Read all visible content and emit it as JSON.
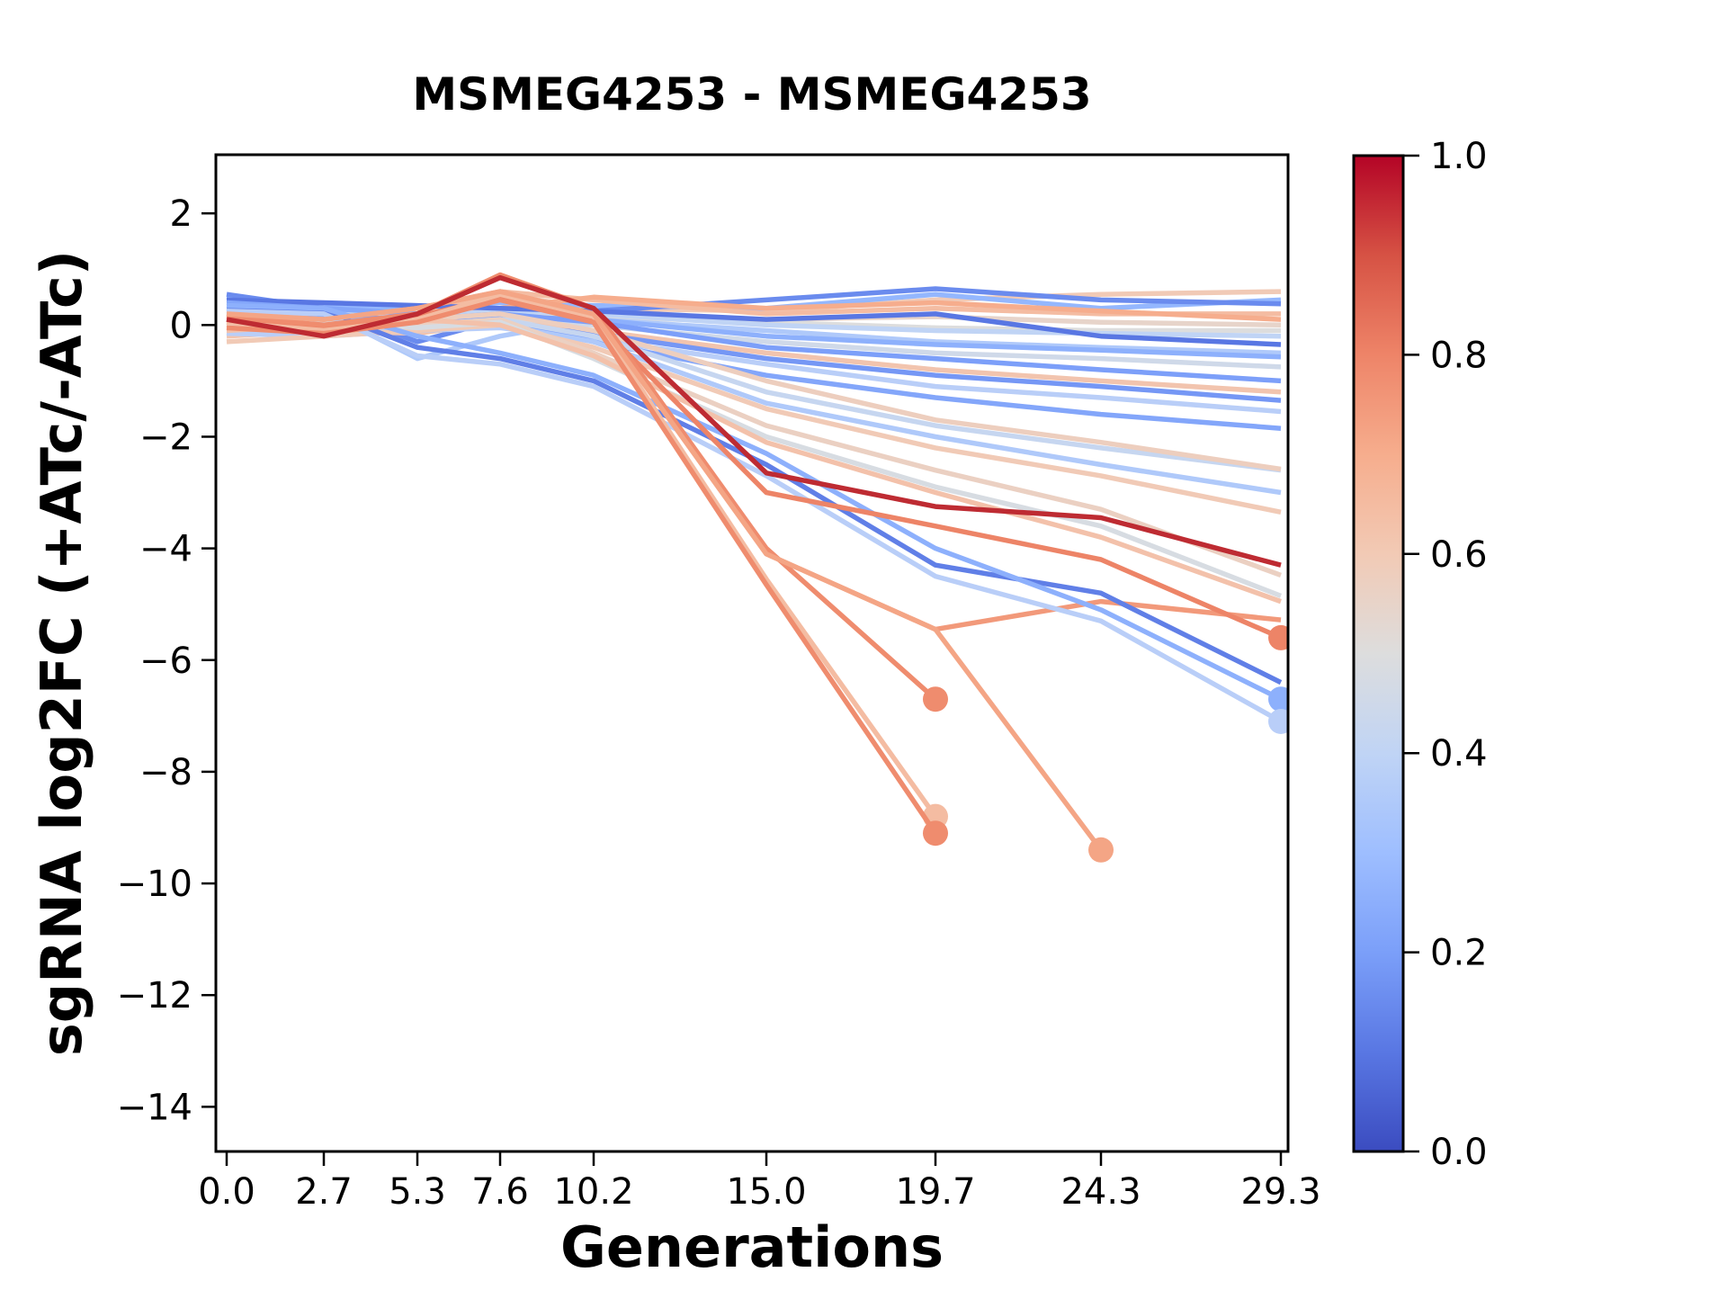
{
  "chart_data": {
    "type": "line",
    "title": "MSMEG4253 - MSMEG4253",
    "xlabel": "Generations",
    "ylabel": "sgRNA log2FC (+ATc/-ATc)",
    "x": [
      0.0,
      2.7,
      5.3,
      7.6,
      10.2,
      15.0,
      19.7,
      24.3,
      29.3
    ],
    "xtick_labels": [
      "0.0",
      "2.7",
      "5.3",
      "7.6",
      "10.2",
      "15.0",
      "19.7",
      "24.3",
      "29.3"
    ],
    "ytick_values": [
      2,
      0,
      -2,
      -4,
      -6,
      -8,
      -10,
      -12,
      -14
    ],
    "ytick_labels": [
      "2",
      "0",
      "−2",
      "−4",
      "−6",
      "−8",
      "−10",
      "−12",
      "−14"
    ],
    "xlim": [
      -0.3,
      29.5
    ],
    "ylim": [
      -14.8,
      3.05
    ],
    "grid": false,
    "legend_position": "none",
    "colorbar": {
      "colormap": "coolwarm",
      "vmin": 0.0,
      "vmax": 1.0,
      "tick_values": [
        1.0,
        0.8,
        0.6,
        0.4,
        0.2,
        0.0
      ],
      "tick_labels": [
        "1.0",
        "0.8",
        "0.6",
        "0.4",
        "0.2",
        "0.0"
      ]
    },
    "series": [
      {
        "color": "#F1CAB6",
        "marker_end": false,
        "values": [
          0.1,
          0.15,
          0.2,
          0.55,
          0.3,
          0.25,
          0.45,
          0.55,
          0.6
        ]
      },
      {
        "color": "#94B7FE",
        "marker_end": false,
        "values": [
          0.5,
          0.35,
          0.3,
          0.4,
          0.35,
          0.3,
          0.55,
          0.3,
          0.45
        ]
      },
      {
        "color": "#6A8BEE",
        "marker_end": false,
        "values": [
          0.55,
          0.3,
          -0.3,
          0.1,
          0.25,
          0.45,
          0.65,
          0.45,
          0.38
        ]
      },
      {
        "color": "#F4BCA2",
        "marker_end": false,
        "values": [
          0.2,
          0.1,
          0.15,
          0.6,
          0.45,
          0.2,
          0.3,
          0.2,
          0.2
        ]
      },
      {
        "color": "#F6AD8D",
        "marker_end": false,
        "values": [
          -0.1,
          -0.15,
          0.1,
          0.3,
          0.5,
          0.3,
          0.4,
          0.25,
          0.1
        ]
      },
      {
        "color": "#E7D4CA",
        "marker_end": false,
        "values": [
          0.0,
          0.05,
          -0.05,
          0.1,
          0.2,
          0.1,
          0.15,
          0.05,
          0.0
        ]
      },
      {
        "color": "#DDDDDD",
        "marker_end": false,
        "values": [
          -0.05,
          0.0,
          0.1,
          0.2,
          0.15,
          0.05,
          -0.05,
          -0.1,
          -0.1
        ]
      },
      {
        "color": "#C0D4F5",
        "marker_end": false,
        "values": [
          0.3,
          0.2,
          0.15,
          0.25,
          0.2,
          0.0,
          -0.1,
          -0.15,
          -0.2
        ]
      },
      {
        "color": "#5977E3",
        "marker_end": false,
        "values": [
          0.45,
          0.4,
          0.35,
          0.3,
          0.25,
          0.1,
          0.2,
          -0.2,
          -0.35
        ]
      },
      {
        "color": "#AFC9FA",
        "marker_end": false,
        "values": [
          0.35,
          0.25,
          -0.6,
          -0.2,
          0.1,
          -0.1,
          -0.3,
          -0.4,
          -0.5
        ]
      },
      {
        "color": "#8DB0FC",
        "marker_end": false,
        "values": [
          0.15,
          0.1,
          0.05,
          0.15,
          0.1,
          -0.2,
          -0.35,
          -0.45,
          -0.57
        ]
      },
      {
        "color": "#CFD9E9",
        "marker_end": false,
        "values": [
          0.05,
          -0.05,
          0.0,
          0.1,
          0.0,
          -0.3,
          -0.5,
          -0.6,
          -0.75
        ]
      },
      {
        "color": "#7C9FF9",
        "marker_end": false,
        "values": [
          0.25,
          0.15,
          0.1,
          0.2,
          0.05,
          -0.4,
          -0.6,
          -0.8,
          -1.0
        ]
      },
      {
        "color": "#F2C4AE",
        "marker_end": false,
        "values": [
          -0.2,
          -0.1,
          -0.15,
          0.05,
          -0.1,
          -0.5,
          -0.8,
          -1.0,
          -1.2
        ]
      },
      {
        "color": "#7597F5",
        "marker_end": false,
        "values": [
          0.1,
          0.05,
          -0.1,
          0.0,
          -0.15,
          -0.6,
          -0.9,
          -1.1,
          -1.35
        ]
      },
      {
        "color": "#B9CEF8",
        "marker_end": false,
        "values": [
          -0.15,
          -0.2,
          -0.1,
          -0.05,
          -0.25,
          -0.7,
          -1.1,
          -1.3,
          -1.55
        ]
      },
      {
        "color": "#83A6FA",
        "marker_end": false,
        "values": [
          0.4,
          0.3,
          0.2,
          0.1,
          -0.3,
          -0.9,
          -1.3,
          -1.6,
          -1.85
        ]
      },
      {
        "color": "#C6D6F0",
        "marker_end": false,
        "values": [
          0.2,
          0.1,
          0.0,
          0.1,
          -0.2,
          -1.2,
          -1.8,
          -2.2,
          -2.6
        ]
      },
      {
        "color": "#EDCEBE",
        "marker_end": false,
        "values": [
          0.0,
          -0.1,
          0.1,
          0.2,
          -0.1,
          -1.0,
          -1.7,
          -2.1,
          -2.58
        ]
      },
      {
        "color": "#AFC9FA",
        "marker_end": false,
        "values": [
          0.1,
          0.0,
          -0.1,
          0.0,
          -0.3,
          -1.4,
          -2.0,
          -2.5,
          -3.0
        ]
      },
      {
        "color": "#F1CAB6",
        "marker_end": false,
        "values": [
          -0.3,
          -0.2,
          -0.1,
          0.0,
          -0.4,
          -1.5,
          -2.2,
          -2.7,
          -3.35
        ]
      },
      {
        "color": "#EBD0C2",
        "marker_end": false,
        "values": [
          0.0,
          -0.1,
          0.0,
          0.1,
          -0.5,
          -1.8,
          -2.6,
          -3.3,
          -4.48
        ]
      },
      {
        "color": "#D7DCE2",
        "marker_end": false,
        "values": [
          0.1,
          0.05,
          -0.05,
          0.05,
          -0.6,
          -2.0,
          -2.9,
          -3.6,
          -4.85
        ]
      },
      {
        "color": "#F3C1AA",
        "marker_end": false,
        "values": [
          -0.1,
          0.0,
          0.1,
          0.0,
          -0.55,
          -2.1,
          -3.0,
          -3.8,
          -4.95
        ]
      },
      {
        "color": "#F2997A",
        "marker_end": false,
        "values": [
          0.2,
          0.1,
          0.3,
          0.6,
          0.2,
          -4.1,
          -5.45,
          -4.95,
          -5.28
        ]
      },
      {
        "color": "#607FE7",
        "marker_end": false,
        "values": [
          0.3,
          0.25,
          -0.4,
          -0.6,
          -1.0,
          -2.5,
          -4.3,
          -4.8,
          -6.4
        ]
      },
      {
        "color": "#8DB0FC",
        "marker_end": true,
        "values": [
          0.35,
          0.3,
          -0.2,
          -0.5,
          -0.9,
          -2.3,
          -4.0,
          -5.1,
          -6.7
        ]
      },
      {
        "color": "#B9CEF8",
        "marker_end": true,
        "values": [
          0.25,
          0.2,
          -0.55,
          -0.7,
          -1.1,
          -2.7,
          -4.5,
          -5.3,
          -7.1
        ]
      },
      {
        "color": "#ED8467",
        "marker_end": true,
        "values": [
          0.1,
          -0.05,
          0.15,
          0.5,
          0.1,
          -3.0,
          -3.6,
          -4.2,
          -5.6
        ]
      },
      {
        "color": "#F4BCA2",
        "marker_end": true,
        "values": [
          0.05,
          -0.1,
          0.1,
          0.55,
          0.15,
          -4.55,
          -8.8,
          null,
          null
        ]
      },
      {
        "color": "#EF8C6E",
        "marker_end": true,
        "values": [
          -0.05,
          -0.15,
          0.05,
          0.45,
          0.05,
          -4.65,
          -9.1,
          null,
          null
        ]
      },
      {
        "color": "#EF8C6E",
        "marker_end": true,
        "values": [
          0.15,
          0.0,
          0.2,
          0.9,
          0.3,
          -4.0,
          -6.7,
          null,
          null
        ]
      },
      {
        "color": "#F4A585",
        "marker_end": true,
        "values": [
          0.2,
          0.1,
          0.3,
          0.6,
          0.2,
          -4.1,
          -5.45,
          -9.4,
          null
        ]
      },
      {
        "color": "#BE2B32",
        "marker_end": false,
        "values": [
          0.1,
          -0.2,
          0.2,
          0.85,
          0.3,
          -2.65,
          -3.25,
          -3.45,
          -4.3
        ]
      }
    ]
  }
}
